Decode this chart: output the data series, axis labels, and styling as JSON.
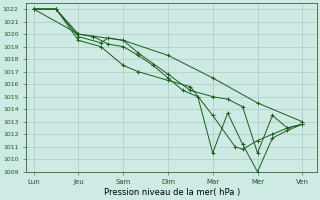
{
  "bg_color": "#cdeae4",
  "grid_color": "#b0c8c4",
  "line_color": "#1a5c1a",
  "xlabel": "Pression niveau de la mer( hPa )",
  "xtick_labels": [
    "Lun",
    "Jeu",
    "Sam",
    "Dim",
    "Mar",
    "Mer",
    "Ven"
  ],
  "xtick_positions": [
    0,
    12,
    24,
    36,
    48,
    60,
    72
  ],
  "ylim": [
    1009,
    1022.5
  ],
  "ytick_vals": [
    1009,
    1010,
    1011,
    1012,
    1013,
    1014,
    1015,
    1016,
    1017,
    1018,
    1019,
    1020,
    1021,
    1022
  ],
  "series": [
    {
      "x": [
        0,
        12,
        24,
        36,
        48,
        60,
        72
      ],
      "y": [
        1022,
        1020,
        1019.5,
        1018.3,
        1016.5,
        1014.5,
        1013
      ]
    },
    {
      "x": [
        0,
        6,
        12,
        18,
        20,
        24,
        28,
        36,
        42,
        48,
        52,
        56,
        60,
        64,
        68,
        72
      ],
      "y": [
        1022,
        1022,
        1019.8,
        1019.3,
        1019.7,
        1019.5,
        1018.5,
        1016.8,
        1015.5,
        1015.0,
        1014.8,
        1014.2,
        1010.5,
        1013.5,
        1012.5,
        1012.8
      ]
    },
    {
      "x": [
        0,
        6,
        12,
        16,
        20,
        24,
        28,
        32,
        36,
        40,
        44,
        48,
        52,
        56,
        60,
        64,
        68,
        72
      ],
      "y": [
        1022,
        1022,
        1020.0,
        1019.8,
        1019.2,
        1019.0,
        1018.3,
        1017.5,
        1016.5,
        1015.5,
        1015.0,
        1010.5,
        1013.7,
        1011.2,
        1009.0,
        1011.7,
        1012.3,
        1012.8
      ]
    },
    {
      "x": [
        0,
        6,
        12,
        18,
        24,
        28,
        36,
        42,
        48,
        54,
        56,
        60,
        64,
        68,
        72
      ],
      "y": [
        1022,
        1022,
        1019.5,
        1019.0,
        1017.5,
        1017.0,
        1016.3,
        1015.8,
        1013.5,
        1011.0,
        1010.8,
        1011.5,
        1012.0,
        1012.5,
        1012.8
      ]
    }
  ]
}
